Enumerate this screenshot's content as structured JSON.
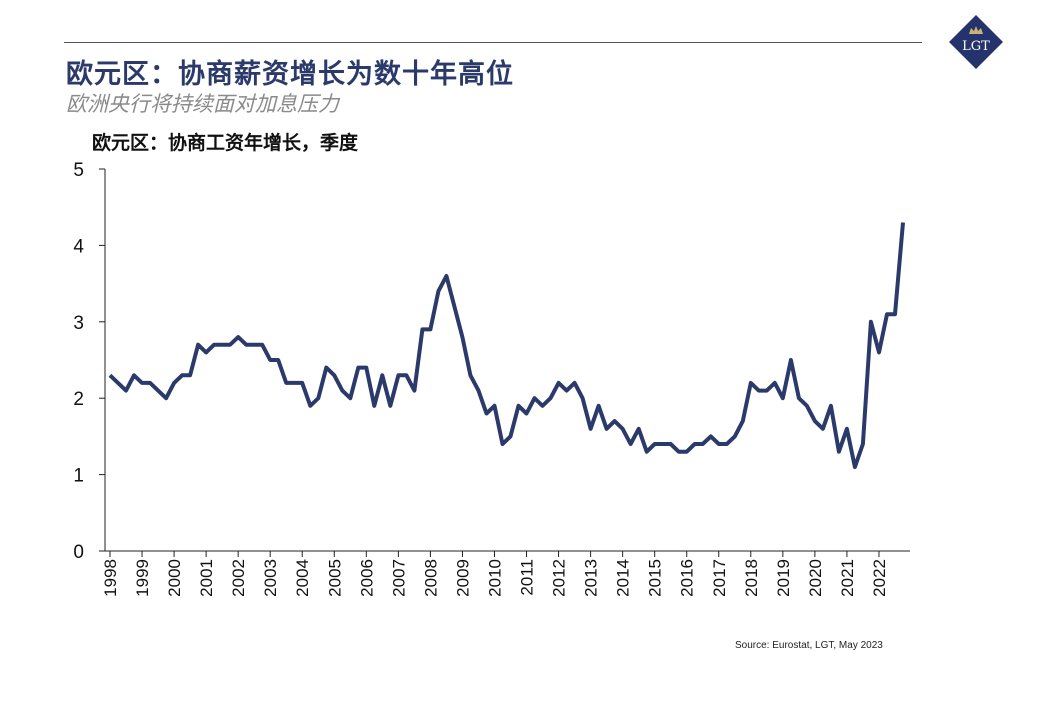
{
  "header": {
    "title": "欧元区：协商薪资增长为数十年高位",
    "subtitle": "欧洲央行将持续面对加息压力",
    "logo_text": "LGT"
  },
  "source": "Source: Eurostat, LGT, May 2023",
  "colors": {
    "line": "#2b3a6b",
    "title": "#2b3a6b",
    "logo_bg": "#24336b"
  },
  "chart_data": {
    "type": "line",
    "title": "欧元区：协商工资年增长，季度",
    "xlabel": "",
    "ylabel": "",
    "ylim": [
      0,
      5
    ],
    "yticks": [
      "0",
      "1",
      "2",
      "3",
      "4",
      "5"
    ],
    "xticks": [
      "1998",
      "1999",
      "2000",
      "2001",
      "2002",
      "2003",
      "2004",
      "2005",
      "2006",
      "2007",
      "2008",
      "2009",
      "2010",
      "2011",
      "2012",
      "2013",
      "2014",
      "2015",
      "2016",
      "2017",
      "2018",
      "2019",
      "2020",
      "2021",
      "2022"
    ],
    "frequency": "quarterly",
    "series": [
      {
        "name": "协商工资年增长",
        "values": [
          2.3,
          2.2,
          2.1,
          2.3,
          2.2,
          2.2,
          2.1,
          2.0,
          2.2,
          2.3,
          2.3,
          2.7,
          2.6,
          2.7,
          2.7,
          2.7,
          2.8,
          2.7,
          2.7,
          2.7,
          2.5,
          2.5,
          2.2,
          2.2,
          2.2,
          1.9,
          2.0,
          2.4,
          2.3,
          2.1,
          2.0,
          2.4,
          2.4,
          1.9,
          2.3,
          1.9,
          2.3,
          2.3,
          2.1,
          2.9,
          2.9,
          3.4,
          3.6,
          3.2,
          2.8,
          2.3,
          2.1,
          1.8,
          1.9,
          1.4,
          1.5,
          1.9,
          1.8,
          2.0,
          1.9,
          2.0,
          2.2,
          2.1,
          2.2,
          2.0,
          1.6,
          1.9,
          1.6,
          1.7,
          1.6,
          1.4,
          1.6,
          1.3,
          1.4,
          1.4,
          1.4,
          1.3,
          1.3,
          1.4,
          1.4,
          1.5,
          1.4,
          1.4,
          1.5,
          1.7,
          2.2,
          2.1,
          2.1,
          2.2,
          2.0,
          2.5,
          2.0,
          1.9,
          1.7,
          1.6,
          1.9,
          1.3,
          1.6,
          1.1,
          1.4,
          3.0,
          2.6,
          3.1,
          3.1,
          4.3
        ]
      }
    ]
  }
}
